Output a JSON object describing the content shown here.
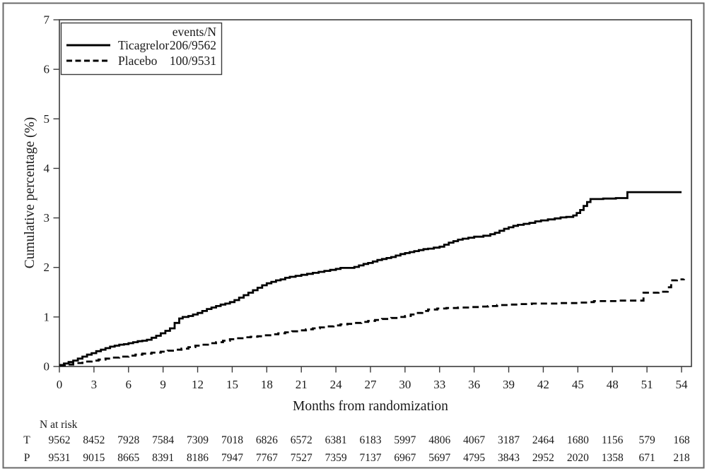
{
  "chart_data": {
    "type": "line",
    "step_function": true,
    "title": "",
    "xlabel": "Months from randomization",
    "ylabel": "Cumulative percentage (%)",
    "xlim": [
      0,
      55
    ],
    "ylim": [
      0,
      7
    ],
    "grid": false,
    "x_ticks": [
      0,
      3,
      6,
      9,
      12,
      15,
      18,
      21,
      24,
      27,
      30,
      33,
      36,
      39,
      42,
      45,
      48,
      51,
      54
    ],
    "y_ticks": [
      0,
      1,
      2,
      3,
      4,
      5,
      6,
      7
    ],
    "legend": {
      "position": "top-left",
      "header": "events/N"
    },
    "series": [
      {
        "name": "Ticagrelor",
        "events_over_n": "206/9562",
        "line_style": "solid",
        "points": [
          [
            0,
            0.03
          ],
          [
            0.4,
            0.06
          ],
          [
            0.8,
            0.09
          ],
          [
            1.2,
            0.12
          ],
          [
            1.6,
            0.16
          ],
          [
            2,
            0.2
          ],
          [
            2.4,
            0.24
          ],
          [
            2.8,
            0.27
          ],
          [
            3.2,
            0.31
          ],
          [
            3.6,
            0.34
          ],
          [
            4,
            0.37
          ],
          [
            4.4,
            0.4
          ],
          [
            4.8,
            0.42
          ],
          [
            5.2,
            0.44
          ],
          [
            5.6,
            0.45
          ],
          [
            6,
            0.47
          ],
          [
            6.4,
            0.49
          ],
          [
            6.8,
            0.51
          ],
          [
            7.2,
            0.52
          ],
          [
            7.6,
            0.54
          ],
          [
            8,
            0.58
          ],
          [
            8.4,
            0.62
          ],
          [
            8.8,
            0.67
          ],
          [
            9.2,
            0.72
          ],
          [
            9.6,
            0.77
          ],
          [
            10,
            0.88
          ],
          [
            10.4,
            0.97
          ],
          [
            10.7,
            1.0
          ],
          [
            11.2,
            1.02
          ],
          [
            11.6,
            1.05
          ],
          [
            12,
            1.08
          ],
          [
            12.4,
            1.12
          ],
          [
            12.8,
            1.16
          ],
          [
            13.2,
            1.19
          ],
          [
            13.6,
            1.22
          ],
          [
            14,
            1.25
          ],
          [
            14.4,
            1.27
          ],
          [
            14.8,
            1.3
          ],
          [
            15.2,
            1.34
          ],
          [
            15.6,
            1.39
          ],
          [
            16,
            1.44
          ],
          [
            16.4,
            1.49
          ],
          [
            16.8,
            1.54
          ],
          [
            17.2,
            1.59
          ],
          [
            17.6,
            1.64
          ],
          [
            18,
            1.68
          ],
          [
            18.4,
            1.71
          ],
          [
            18.8,
            1.74
          ],
          [
            19.2,
            1.76
          ],
          [
            19.6,
            1.79
          ],
          [
            20,
            1.81
          ],
          [
            20.5,
            1.83
          ],
          [
            21,
            1.85
          ],
          [
            21.5,
            1.87
          ],
          [
            22,
            1.89
          ],
          [
            22.5,
            1.91
          ],
          [
            23,
            1.93
          ],
          [
            23.5,
            1.95
          ],
          [
            24,
            1.97
          ],
          [
            24.4,
            1.99
          ],
          [
            25.6,
            2.01
          ],
          [
            26,
            2.04
          ],
          [
            26.4,
            2.07
          ],
          [
            26.8,
            2.09
          ],
          [
            27.2,
            2.12
          ],
          [
            27.6,
            2.15
          ],
          [
            28,
            2.17
          ],
          [
            28.4,
            2.19
          ],
          [
            28.8,
            2.21
          ],
          [
            29.2,
            2.24
          ],
          [
            29.6,
            2.27
          ],
          [
            30,
            2.29
          ],
          [
            30.4,
            2.31
          ],
          [
            30.8,
            2.33
          ],
          [
            31.2,
            2.35
          ],
          [
            31.6,
            2.37
          ],
          [
            32,
            2.38
          ],
          [
            32.5,
            2.4
          ],
          [
            33,
            2.42
          ],
          [
            33.4,
            2.46
          ],
          [
            33.8,
            2.5
          ],
          [
            34.2,
            2.53
          ],
          [
            34.6,
            2.56
          ],
          [
            35,
            2.58
          ],
          [
            35.5,
            2.6
          ],
          [
            36,
            2.62
          ],
          [
            36.8,
            2.64
          ],
          [
            37.4,
            2.67
          ],
          [
            37.8,
            2.7
          ],
          [
            38.2,
            2.74
          ],
          [
            38.6,
            2.78
          ],
          [
            39,
            2.81
          ],
          [
            39.4,
            2.84
          ],
          [
            39.8,
            2.86
          ],
          [
            40.3,
            2.88
          ],
          [
            40.8,
            2.9
          ],
          [
            41.3,
            2.93
          ],
          [
            41.8,
            2.95
          ],
          [
            42.4,
            2.97
          ],
          [
            43,
            2.99
          ],
          [
            43.5,
            3.01
          ],
          [
            44,
            3.02
          ],
          [
            44.6,
            3.05
          ],
          [
            44.9,
            3.1
          ],
          [
            45.2,
            3.16
          ],
          [
            45.5,
            3.24
          ],
          [
            45.8,
            3.32
          ],
          [
            46.1,
            3.38
          ],
          [
            47.2,
            3.39
          ],
          [
            48.3,
            3.4
          ],
          [
            49.3,
            3.52
          ],
          [
            54,
            3.52
          ]
        ]
      },
      {
        "name": "Placebo",
        "events_over_n": "100/9531",
        "line_style": "dashed",
        "points": [
          [
            0,
            0.02
          ],
          [
            0.6,
            0.04
          ],
          [
            1.2,
            0.07
          ],
          [
            2,
            0.1
          ],
          [
            2.8,
            0.12
          ],
          [
            3.4,
            0.14
          ],
          [
            4,
            0.16
          ],
          [
            4.6,
            0.18
          ],
          [
            5.2,
            0.2
          ],
          [
            6,
            0.22
          ],
          [
            6.6,
            0.24
          ],
          [
            7.2,
            0.26
          ],
          [
            8,
            0.28
          ],
          [
            8.8,
            0.3
          ],
          [
            9.4,
            0.32
          ],
          [
            10,
            0.34
          ],
          [
            10.6,
            0.36
          ],
          [
            11.2,
            0.39
          ],
          [
            11.8,
            0.42
          ],
          [
            12.4,
            0.44
          ],
          [
            13,
            0.47
          ],
          [
            13.6,
            0.49
          ],
          [
            14.2,
            0.52
          ],
          [
            14.8,
            0.55
          ],
          [
            15.4,
            0.57
          ],
          [
            16,
            0.59
          ],
          [
            16.6,
            0.6
          ],
          [
            17.2,
            0.61
          ],
          [
            17.8,
            0.63
          ],
          [
            18.4,
            0.65
          ],
          [
            19,
            0.67
          ],
          [
            19.6,
            0.69
          ],
          [
            20.2,
            0.71
          ],
          [
            20.8,
            0.73
          ],
          [
            21.4,
            0.75
          ],
          [
            22,
            0.77
          ],
          [
            22.6,
            0.79
          ],
          [
            23.2,
            0.81
          ],
          [
            23.8,
            0.83
          ],
          [
            24.4,
            0.85
          ],
          [
            25,
            0.86
          ],
          [
            25.6,
            0.88
          ],
          [
            26.2,
            0.9
          ],
          [
            26.8,
            0.92
          ],
          [
            27.4,
            0.94
          ],
          [
            28,
            0.96
          ],
          [
            28.8,
            0.98
          ],
          [
            29.4,
            1.0
          ],
          [
            30,
            1.02
          ],
          [
            30.5,
            1.05
          ],
          [
            31,
            1.08
          ],
          [
            31.5,
            1.12
          ],
          [
            32,
            1.15
          ],
          [
            32.8,
            1.17
          ],
          [
            33.6,
            1.18
          ],
          [
            34.6,
            1.19
          ],
          [
            35.6,
            1.2
          ],
          [
            36.6,
            1.21
          ],
          [
            37.2,
            1.22
          ],
          [
            38,
            1.24
          ],
          [
            39,
            1.25
          ],
          [
            40,
            1.26
          ],
          [
            41,
            1.27
          ],
          [
            43.5,
            1.28
          ],
          [
            45,
            1.29
          ],
          [
            46,
            1.3
          ],
          [
            46.4,
            1.32
          ],
          [
            48.5,
            1.33
          ],
          [
            50.7,
            1.49
          ],
          [
            52,
            1.51
          ],
          [
            52.8,
            1.6
          ],
          [
            53.1,
            1.74
          ],
          [
            53.6,
            1.76
          ],
          [
            54.2,
            1.77
          ]
        ]
      }
    ],
    "n_at_risk": {
      "label": "N at risk",
      "rows": [
        {
          "label": "T",
          "values": [
            9562,
            8452,
            7928,
            7584,
            7309,
            7018,
            6826,
            6572,
            6381,
            6183,
            5997,
            4806,
            4067,
            3187,
            2464,
            1680,
            1156,
            579,
            168
          ]
        },
        {
          "label": "P",
          "values": [
            9531,
            9015,
            8665,
            8391,
            8186,
            7947,
            7767,
            7527,
            7359,
            7137,
            6967,
            5697,
            4795,
            3843,
            2952,
            2020,
            1358,
            671,
            218
          ]
        }
      ]
    },
    "colors": {
      "line": "#000000",
      "frame": "#3b3b3b",
      "outer_border": "#6a6a6a",
      "text": "#1a1a1a",
      "background": "#ffffff"
    }
  }
}
